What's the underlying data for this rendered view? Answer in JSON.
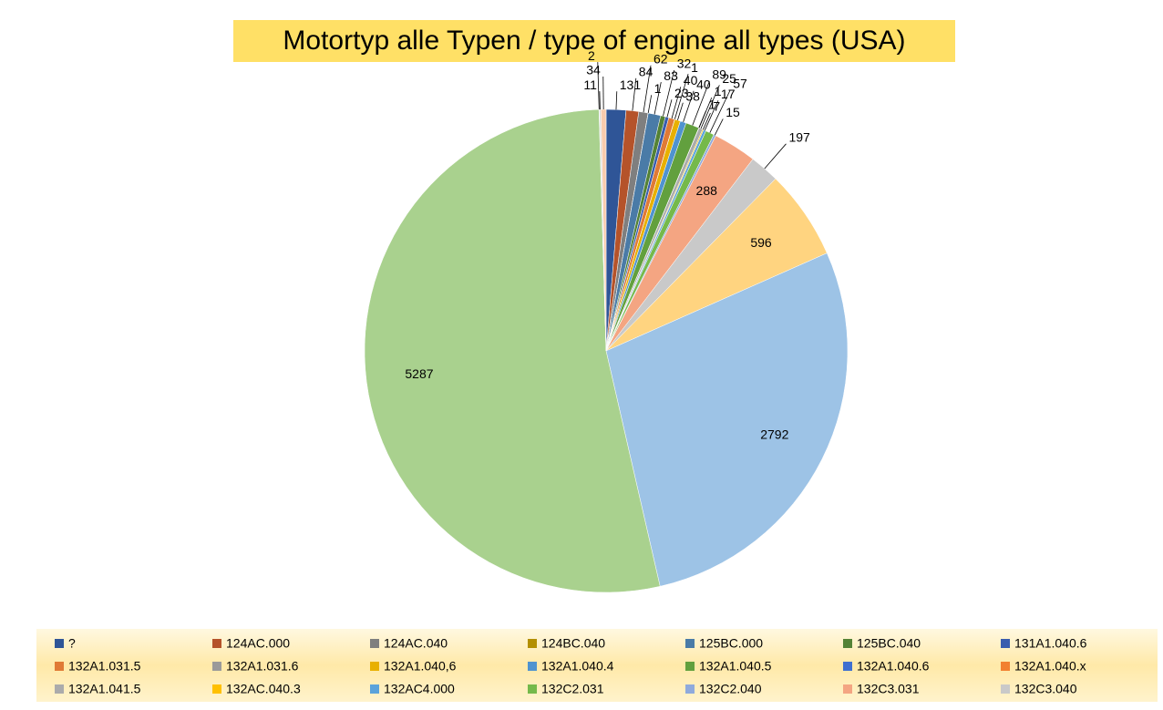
{
  "chart_data": {
    "type": "pie",
    "title": "Motortyp alle Typen / type of engine all types (USA)",
    "categories": [
      "?",
      "124AC.000",
      "124AC.040",
      "124BC.040",
      "125BC.000",
      "125BC.040",
      "131A1.040.6",
      "132A1.031.5",
      "132A1.031.6",
      "132A1.040,6",
      "132A1.040.4",
      "132A1.040.5",
      "132A1.040.6",
      "132A1.040.x",
      "132A1.041.5",
      "132AC.040.3",
      "132AC4.000",
      "132C2.031",
      "132C2.040",
      "132C3.031",
      "132C3.040",
      null,
      null,
      null,
      null,
      null,
      null
    ],
    "values": [
      131,
      84,
      62,
      1,
      83,
      32,
      23,
      40,
      1,
      38,
      40,
      89,
      1,
      1,
      25,
      7,
      17,
      57,
      15,
      288,
      197,
      596,
      2792,
      5287,
      2,
      11,
      34
    ],
    "colors": [
      "#2F5597",
      "#B5532A",
      "#7F7F7F",
      "#B38F00",
      "#4A7BA7",
      "#548235",
      "#3A5DAE",
      "#E07A35",
      "#9A9A9A",
      "#E8B000",
      "#4F93CF",
      "#62A03E",
      "#3F6FD0",
      "#F28030",
      "#ABABAB",
      "#FFC000",
      "#5BA3DB",
      "#75B94B",
      "#8FAADC",
      "#F4A582",
      "#C9C9C9",
      "#FFD480",
      "#9DC3E6",
      "#A9D18E",
      "#B4C0E4",
      "#D9D9D9",
      "#F8CBAD"
    ]
  }
}
